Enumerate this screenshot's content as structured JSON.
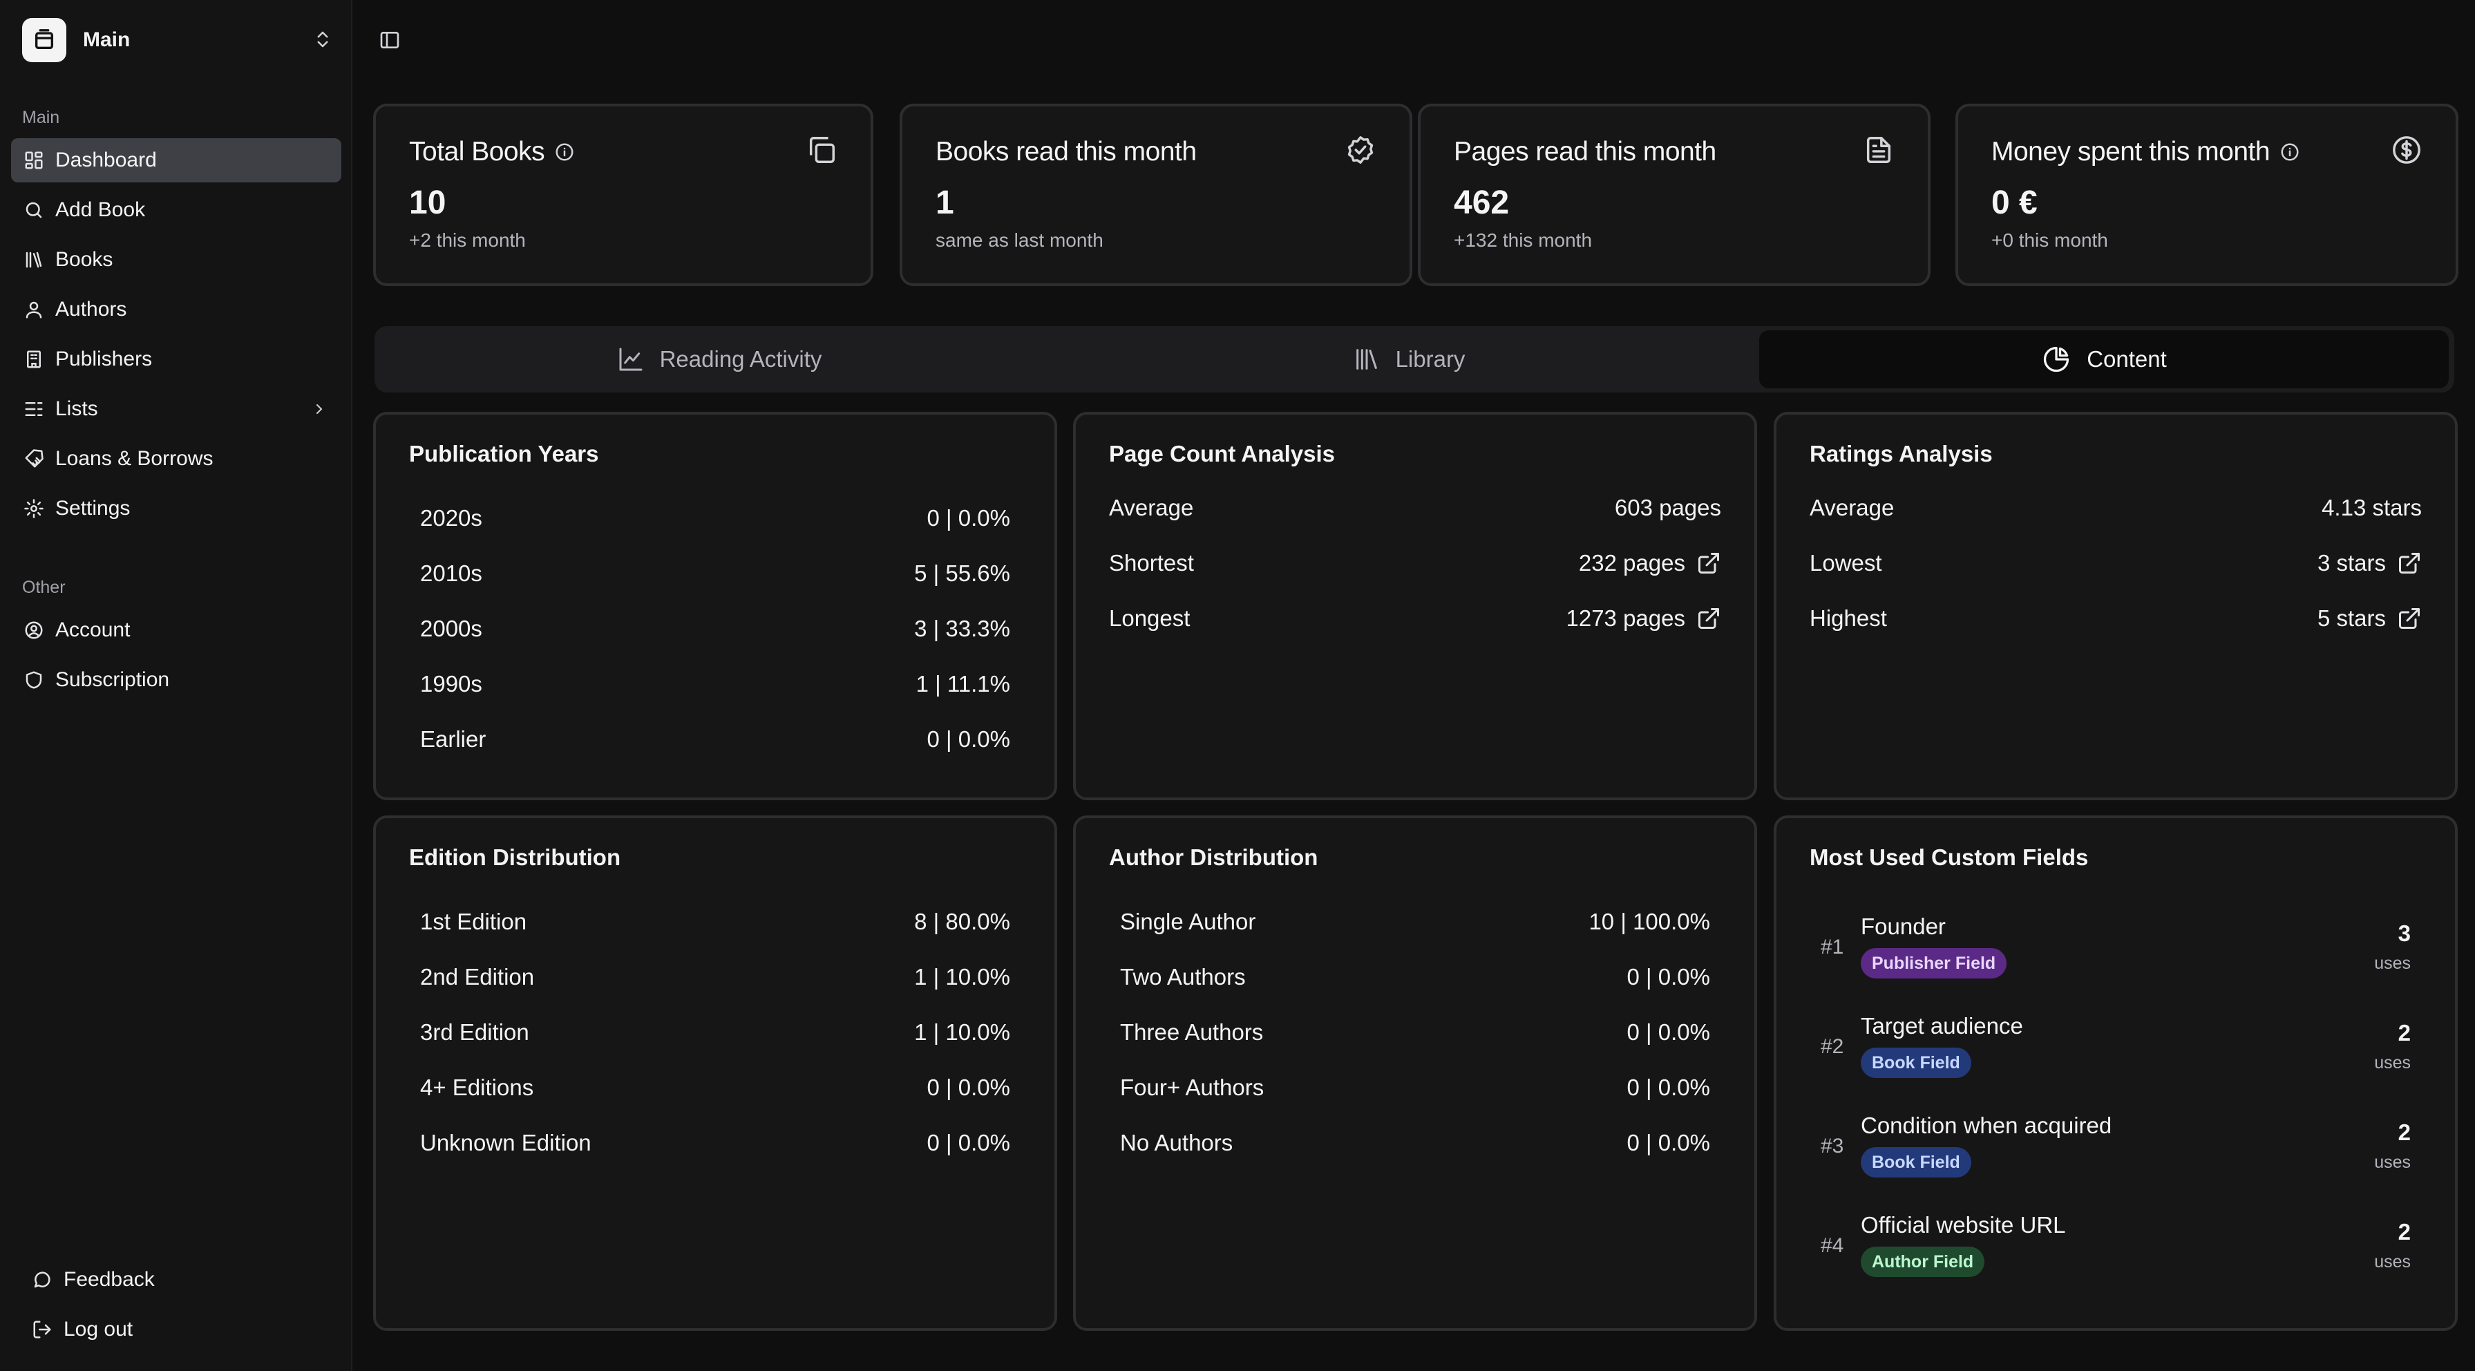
{
  "brand": {
    "name": "Main"
  },
  "sidebar": {
    "main_label": "Main",
    "items": [
      {
        "label": "Dashboard",
        "icon": "dashboard-icon",
        "active": true
      },
      {
        "label": "Add Book",
        "icon": "search-icon"
      },
      {
        "label": "Books",
        "icon": "books-icon"
      },
      {
        "label": "Authors",
        "icon": "user-icon"
      },
      {
        "label": "Publishers",
        "icon": "building-icon"
      },
      {
        "label": "Lists",
        "icon": "list-icon",
        "has_submenu": true
      },
      {
        "label": "Loans & Borrows",
        "icon": "handshake-icon"
      },
      {
        "label": "Settings",
        "icon": "gear-icon"
      }
    ],
    "other_label": "Other",
    "other_items": [
      {
        "label": "Account",
        "icon": "account-icon"
      },
      {
        "label": "Subscription",
        "icon": "shield-icon"
      }
    ],
    "bottom_items": [
      {
        "label": "Feedback",
        "icon": "message-icon"
      },
      {
        "label": "Log out",
        "icon": "logout-icon"
      }
    ]
  },
  "stats": [
    {
      "title": "Total Books",
      "value": "10",
      "sub": "+2 this month",
      "icon": "copy-icon",
      "has_info": true
    },
    {
      "title": "Books read this month",
      "value": "1",
      "sub": "same as last month",
      "icon": "check-badge-icon"
    },
    {
      "title": "Pages read this month",
      "value": "462",
      "sub": "+132 this month",
      "icon": "file-text-icon"
    },
    {
      "title": "Money spent this month",
      "value": "0 €",
      "sub": "+0 this month",
      "icon": "dollar-circle-icon",
      "has_info": true
    }
  ],
  "tabs": [
    {
      "label": "Reading Activity",
      "icon": "line-chart-icon"
    },
    {
      "label": "Library",
      "icon": "library-icon"
    },
    {
      "label": "Content",
      "icon": "pie-chart-icon",
      "active": true
    }
  ],
  "publication_years": {
    "title": "Publication Years",
    "rows": [
      {
        "label": "2020s",
        "value": "0 | 0.0%"
      },
      {
        "label": "2010s",
        "value": "5 | 55.6%"
      },
      {
        "label": "2000s",
        "value": "3 | 33.3%"
      },
      {
        "label": "1990s",
        "value": "1 | 11.1%"
      },
      {
        "label": "Earlier",
        "value": "0 | 0.0%"
      }
    ]
  },
  "page_count": {
    "title": "Page Count Analysis",
    "rows": [
      {
        "label": "Average",
        "value": "603 pages"
      },
      {
        "label": "Shortest",
        "value": "232 pages",
        "link": true
      },
      {
        "label": "Longest",
        "value": "1273 pages",
        "link": true
      }
    ]
  },
  "ratings": {
    "title": "Ratings Analysis",
    "rows": [
      {
        "label": "Average",
        "value": "4.13 stars"
      },
      {
        "label": "Lowest",
        "value": "3 stars",
        "link": true
      },
      {
        "label": "Highest",
        "value": "5 stars",
        "link": true
      }
    ]
  },
  "editions": {
    "title": "Edition Distribution",
    "rows": [
      {
        "label": "1st Edition",
        "value": "8 | 80.0%"
      },
      {
        "label": "2nd Edition",
        "value": "1 | 10.0%"
      },
      {
        "label": "3rd Edition",
        "value": "1 | 10.0%"
      },
      {
        "label": "4+ Editions",
        "value": "0 | 0.0%"
      },
      {
        "label": "Unknown Edition",
        "value": "0 | 0.0%"
      }
    ]
  },
  "authors": {
    "title": "Author Distribution",
    "rows": [
      {
        "label": "Single Author",
        "value": "10 | 100.0%"
      },
      {
        "label": "Two Authors",
        "value": "0 | 0.0%"
      },
      {
        "label": "Three Authors",
        "value": "0 | 0.0%"
      },
      {
        "label": "Four+ Authors",
        "value": "0 | 0.0%"
      },
      {
        "label": "No Authors",
        "value": "0 | 0.0%"
      }
    ]
  },
  "custom_fields": {
    "title": "Most Used Custom Fields",
    "uses_label": "uses",
    "items": [
      {
        "rank": "#1",
        "name": "Founder",
        "badge": "Publisher Field",
        "badge_bg": "#5b2a86",
        "badge_fg": "#e9d5ff",
        "count": "3"
      },
      {
        "rank": "#2",
        "name": "Target audience",
        "badge": "Book Field",
        "badge_bg": "#233a7a",
        "badge_fg": "#c7d7fe",
        "count": "2"
      },
      {
        "rank": "#3",
        "name": "Condition when acquired",
        "badge": "Book Field",
        "badge_bg": "#233a7a",
        "badge_fg": "#c7d7fe",
        "count": "2"
      },
      {
        "rank": "#4",
        "name": "Official website URL",
        "badge": "Author Field",
        "badge_bg": "#1f4a2e",
        "badge_fg": "#bbf7d0",
        "count": "2"
      }
    ]
  }
}
